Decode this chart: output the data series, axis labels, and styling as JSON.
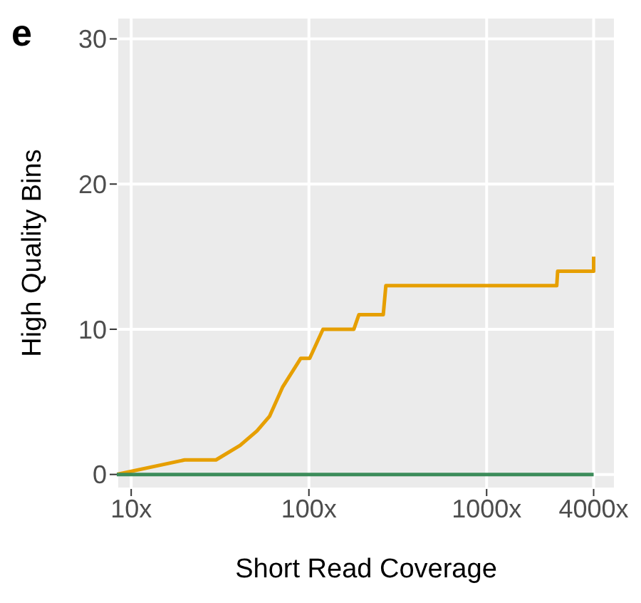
{
  "chart_data": {
    "type": "line",
    "annotations": [
      "e"
    ],
    "xlabel": "Short Read Coverage",
    "ylabel": "High Quality Bins",
    "log": "x",
    "xlim": [
      8.3,
      5300
    ],
    "xticks": [
      {
        "value": 10,
        "label": "10x"
      },
      {
        "value": 100,
        "label": "100x"
      },
      {
        "value": 1000,
        "label": "1000x"
      },
      {
        "value": 4000,
        "label": "4000x"
      }
    ],
    "ylim": [
      -1,
      31.5
    ],
    "yticks": [
      0,
      10,
      20,
      30
    ],
    "grid": true,
    "legend": false,
    "series": [
      {
        "color": "#e69f00",
        "x": [
          8.3,
          20,
          30,
          41,
          51,
          60,
          71,
          90,
          101,
          120,
          179,
          191,
          262,
          271,
          2480,
          2510,
          4000,
          4000
        ],
        "values": [
          0,
          1,
          1,
          2,
          3,
          4,
          6,
          8,
          8,
          10,
          10,
          11,
          11,
          13,
          13,
          14,
          14,
          15
        ]
      },
      {
        "color": "#3c8c5a",
        "x": [
          8.3,
          4000
        ],
        "values": [
          0,
          0
        ]
      }
    ]
  }
}
